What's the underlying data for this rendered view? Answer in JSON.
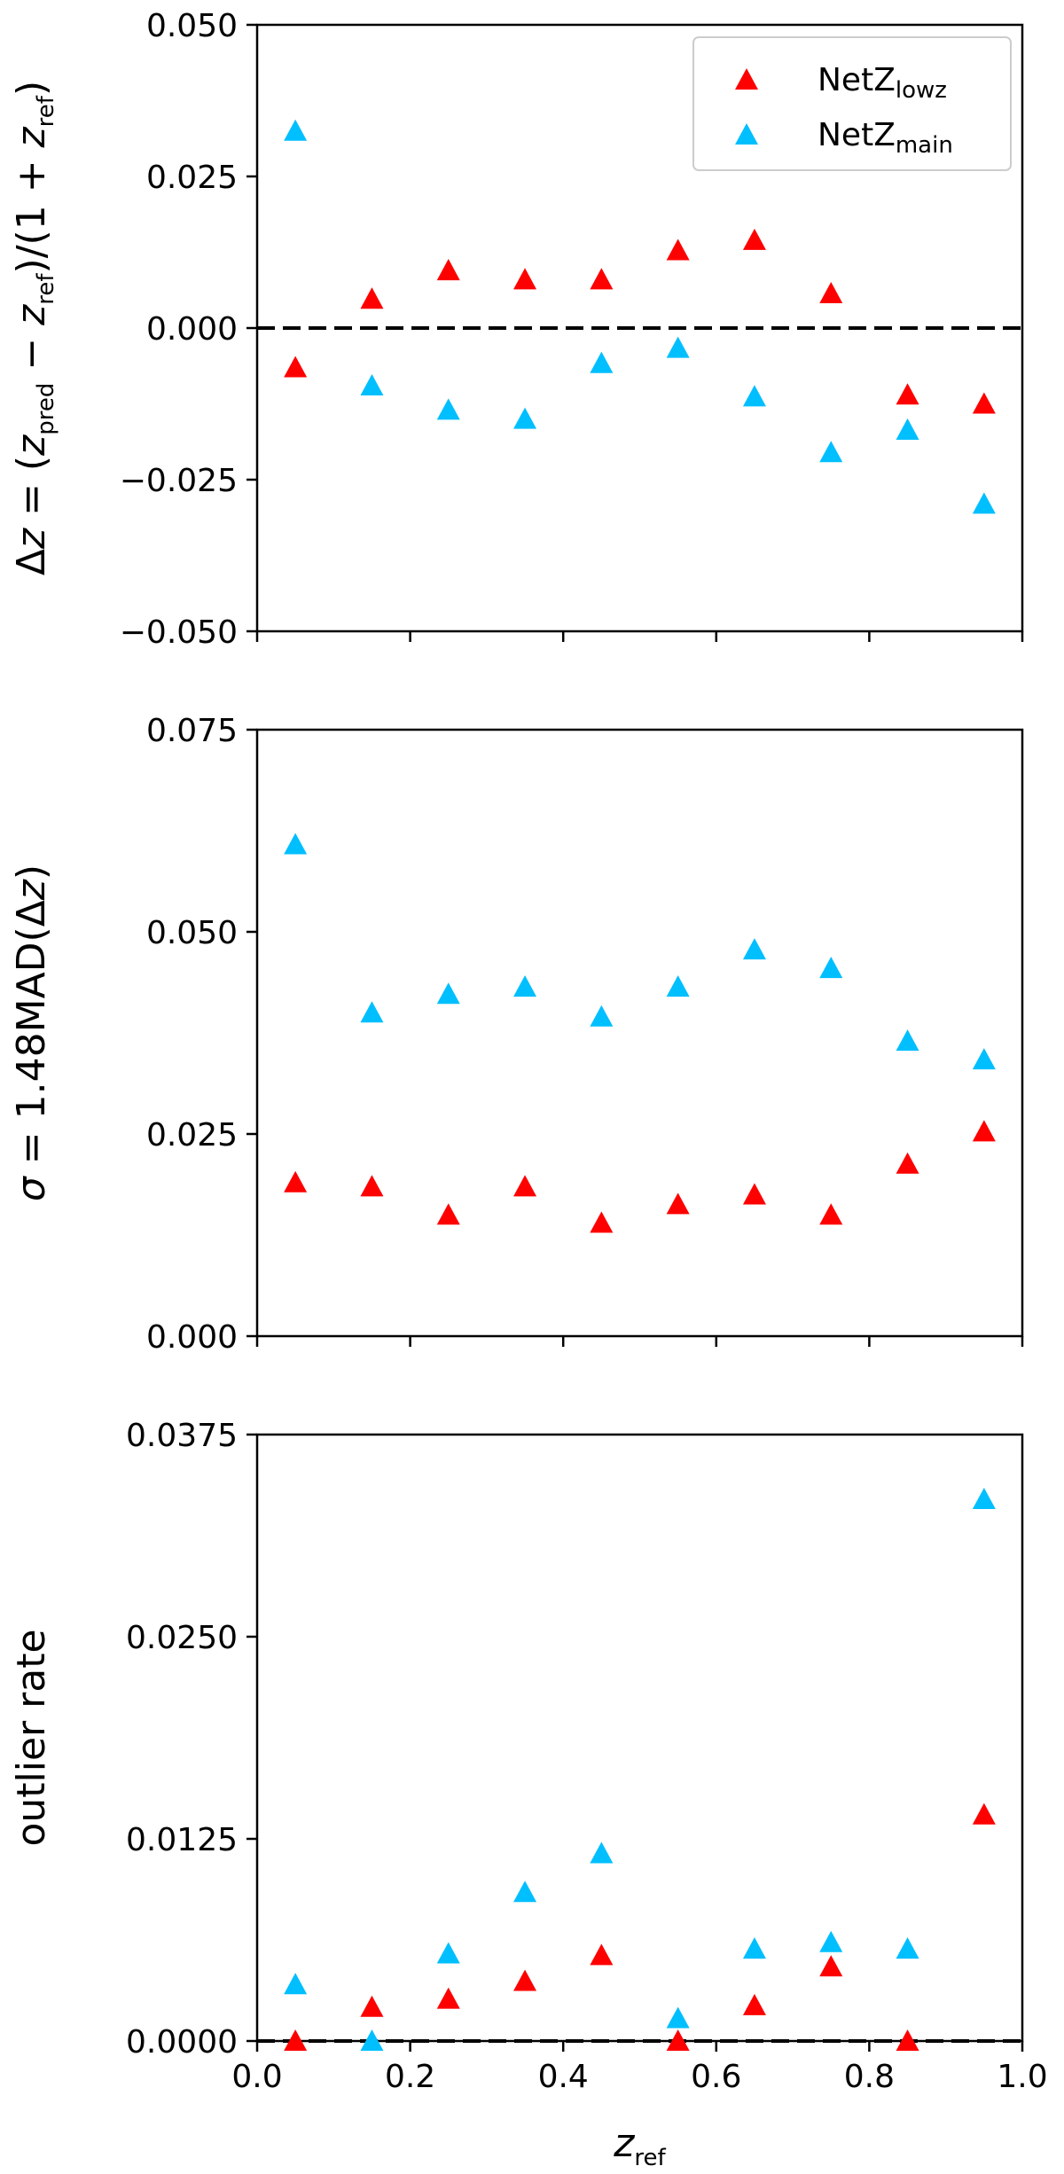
{
  "chart_data": [
    {
      "type": "scatter",
      "panel": "top",
      "ylabel_parts": [
        "Δ",
        "z",
        " = (",
        "z",
        "pred",
        " − ",
        "z",
        "ref",
        ")/(1 + ",
        "z",
        "ref",
        ")"
      ],
      "ylim": [
        -0.05,
        0.05
      ],
      "yticks": [
        "0.050",
        "0.025",
        "0.000",
        "−0.025",
        "−0.050"
      ],
      "ytick_values": [
        0.05,
        0.025,
        0,
        -0.025,
        -0.05
      ],
      "xlim": [
        0,
        1
      ],
      "reference_line": 0,
      "legend": {
        "placement": "top-right",
        "entries": [
          {
            "base": "NetZ",
            "sub": "lowz",
            "color": "#ff0000"
          },
          {
            "base": "NetZ",
            "sub": "main",
            "color": "#00bfff"
          }
        ]
      },
      "x": [
        0.05,
        0.15,
        0.25,
        0.35,
        0.45,
        0.55,
        0.65,
        0.75,
        0.85,
        0.95
      ],
      "series": [
        {
          "name": "NetZ_lowz",
          "color": "#ff0000",
          "values": [
            -0.0065,
            0.0048,
            0.0095,
            0.008,
            0.008,
            0.0128,
            0.0145,
            0.0057,
            -0.011,
            -0.0125
          ]
        },
        {
          "name": "NetZ_main",
          "color": "#00bfff",
          "values": [
            0.0325,
            -0.0095,
            -0.0135,
            -0.015,
            -0.0058,
            -0.0033,
            -0.0113,
            -0.0205,
            -0.0168,
            -0.029
          ]
        }
      ]
    },
    {
      "type": "scatter",
      "panel": "middle",
      "ylabel_parts": [
        "σ",
        " = 1.48MAD(Δ",
        "z",
        ")"
      ],
      "ylim": [
        0,
        0.075
      ],
      "yticks": [
        "0.075",
        "0.050",
        "0.025",
        "0.000"
      ],
      "ytick_values": [
        0.075,
        0.05,
        0.025,
        0
      ],
      "xlim": [
        0,
        1
      ],
      "x": [
        0.05,
        0.15,
        0.25,
        0.35,
        0.45,
        0.55,
        0.65,
        0.75,
        0.85,
        0.95
      ],
      "series": [
        {
          "name": "NetZ_lowz",
          "color": "#ff0000",
          "values": [
            0.019,
            0.0185,
            0.015,
            0.0185,
            0.014,
            0.0163,
            0.0175,
            0.015,
            0.0213,
            0.0253
          ]
        },
        {
          "name": "NetZ_main",
          "color": "#00bfff",
          "values": [
            0.0608,
            0.04,
            0.0423,
            0.0432,
            0.0395,
            0.0432,
            0.0478,
            0.0455,
            0.0365,
            0.0342
          ]
        }
      ]
    },
    {
      "type": "scatter",
      "panel": "bottom",
      "ylabel": "outlier rate",
      "xlabel_parts": [
        "z",
        "ref"
      ],
      "ylim": [
        0,
        0.0375
      ],
      "yticks": [
        "0.0375",
        "0.0250",
        "0.0125",
        "0.0000"
      ],
      "ytick_values": [
        0.0375,
        0.025,
        0.0125,
        0
      ],
      "xlim": [
        0,
        1
      ],
      "xticks": [
        "0.0",
        "0.2",
        "0.4",
        "0.6",
        "0.8",
        "1.0"
      ],
      "xtick_values": [
        0,
        0.2,
        0.4,
        0.6,
        0.8,
        1.0
      ],
      "reference_line": 0,
      "x": [
        0.05,
        0.15,
        0.25,
        0.35,
        0.45,
        0.55,
        0.65,
        0.75,
        0.85,
        0.95
      ],
      "series": [
        {
          "name": "NetZ_lowz",
          "color": "#ff0000",
          "values": [
            0.0,
            0.0021,
            0.0026,
            0.0037,
            0.0053,
            0.0,
            0.0022,
            0.0046,
            0.0,
            0.014
          ]
        },
        {
          "name": "NetZ_main",
          "color": "#00bfff",
          "values": [
            0.0035,
            0.0,
            0.0054,
            0.0092,
            0.0116,
            0.0014,
            0.0057,
            0.0061,
            0.0057,
            0.0335
          ]
        }
      ]
    }
  ]
}
